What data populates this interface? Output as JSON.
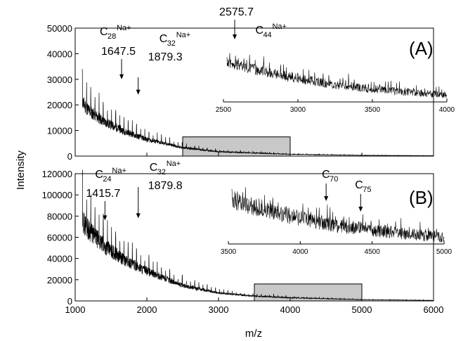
{
  "chart_data": [
    {
      "type": "line",
      "panel_label": "(A)",
      "xlabel": "m/z",
      "ylabel": "Intensity",
      "xlim": [
        1000,
        6000
      ],
      "ylim": [
        0,
        50000
      ],
      "x_ticks": [
        "1000",
        "2000",
        "3000",
        "4000",
        "5000",
        "6000"
      ],
      "y_ticks": [
        "0",
        "10000",
        "20000",
        "30000",
        "40000",
        "50000"
      ],
      "x_tick_values": [
        1000,
        2000,
        3000,
        4000,
        5000,
        6000
      ],
      "y_tick_values": [
        0,
        10000,
        20000,
        30000,
        40000,
        50000
      ],
      "baseline": {
        "x": [
          1100,
          1200,
          1400,
          1700,
          2000,
          2500,
          3000,
          4000,
          5000,
          6000
        ],
        "y": [
          21000,
          17500,
          13500,
          9500,
          6500,
          3300,
          1700,
          700,
          300,
          150
        ]
      },
      "peak_spacing": 58,
      "annotations": [
        {
          "mass": "1647.5",
          "ion": "C",
          "sub": "28",
          "sup": "Na+",
          "x": 1647.5,
          "y": 30000
        },
        {
          "mass": "1879.3",
          "ion": "C",
          "sub": "32",
          "sup": "Na+",
          "x": 1879.3,
          "y": 24000
        }
      ],
      "zoom_region": {
        "xlim": [
          2500,
          4000
        ],
        "ylim": [
          0,
          7500
        ]
      },
      "inset": {
        "xlim": [
          2500,
          4000
        ],
        "x_ticks": [
          "2500",
          "3000",
          "3500",
          "4000"
        ],
        "x_tick_values": [
          2500,
          3000,
          3500,
          4000
        ],
        "annotations": [
          {
            "mass": "2575.7",
            "x": 2575.7
          },
          {
            "ion": "C",
            "sub": "44",
            "sup": "Na+",
            "x": 2620
          }
        ]
      }
    },
    {
      "type": "line",
      "panel_label": "(B)",
      "xlabel": "m/z",
      "ylabel": "Intensity",
      "xlim": [
        1000,
        6000
      ],
      "ylim": [
        0,
        120000
      ],
      "x_ticks": [
        "1000",
        "2000",
        "3000",
        "4000",
        "5000",
        "6000"
      ],
      "y_ticks": [
        "0",
        "20000",
        "40000",
        "60000",
        "80000",
        "100000",
        "120000"
      ],
      "x_tick_values": [
        1000,
        2000,
        3000,
        4000,
        5000,
        6000
      ],
      "y_tick_values": [
        0,
        20000,
        40000,
        60000,
        80000,
        100000,
        120000
      ],
      "baseline": {
        "x": [
          1100,
          1200,
          1400,
          1700,
          2000,
          2500,
          3000,
          3500,
          4000,
          5000,
          6000
        ],
        "y": [
          76000,
          66000,
          52000,
          38000,
          28000,
          14500,
          7500,
          4500,
          3000,
          1200,
          500
        ]
      },
      "peak_spacing": 58,
      "annotations": [
        {
          "mass": "1415.7",
          "ion": "C",
          "sub": "24",
          "sup": "Na+",
          "x": 1415.7,
          "y": 76000
        },
        {
          "mass": "1879.8",
          "ion": "C",
          "sub": "32",
          "sup": "Na+",
          "x": 1879.8,
          "y": 78000
        }
      ],
      "zoom_region": {
        "xlim": [
          3500,
          5000
        ],
        "ylim": [
          0,
          16000
        ]
      },
      "inset": {
        "xlim": [
          3500,
          5000
        ],
        "x_ticks": [
          "3500",
          "4000",
          "4500",
          "5000"
        ],
        "x_tick_values": [
          3500,
          4000,
          4500,
          5000
        ],
        "annotations": [
          {
            "ion": "C",
            "sub": "70",
            "x": 4180
          },
          {
            "ion": "C",
            "sub": "75",
            "x": 4420
          }
        ]
      }
    }
  ]
}
